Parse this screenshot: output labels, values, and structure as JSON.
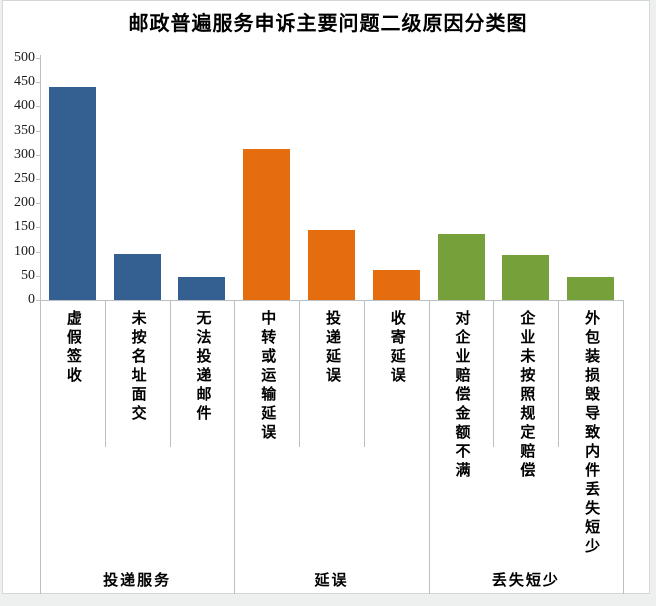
{
  "title": "邮政普遍服务申诉主要问题二级原因分类图",
  "chart_data": {
    "type": "bar",
    "title": "邮政普遍服务申诉主要问题二级原因分类图",
    "xlabel": "",
    "ylabel": "",
    "ylim": [
      0,
      500
    ],
    "ytick_step": 50,
    "yticks": [
      0,
      50,
      100,
      150,
      200,
      250,
      300,
      350,
      400,
      450,
      500
    ],
    "grid": false,
    "legend": "none",
    "groups": [
      {
        "label": "投递服务",
        "color": "#336090",
        "categories": [
          "虚假签收",
          "未按名址面交",
          "无法投递邮件"
        ],
        "values": [
          440,
          96,
          48
        ]
      },
      {
        "label": "延误",
        "color": "#e66d0d",
        "categories": [
          "中转或运输延误",
          "投递延误",
          "收寄延误"
        ],
        "values": [
          312,
          145,
          61
        ]
      },
      {
        "label": "丢失短少",
        "color": "#76a03a",
        "categories": [
          "对企业赔偿金额不满",
          "企业未按照规定赔偿",
          "外包装损毁导致内件丢失短少"
        ],
        "values": [
          136,
          94,
          48
        ]
      }
    ],
    "axis_color": "#b9bfc3",
    "text_color": "#000000"
  }
}
